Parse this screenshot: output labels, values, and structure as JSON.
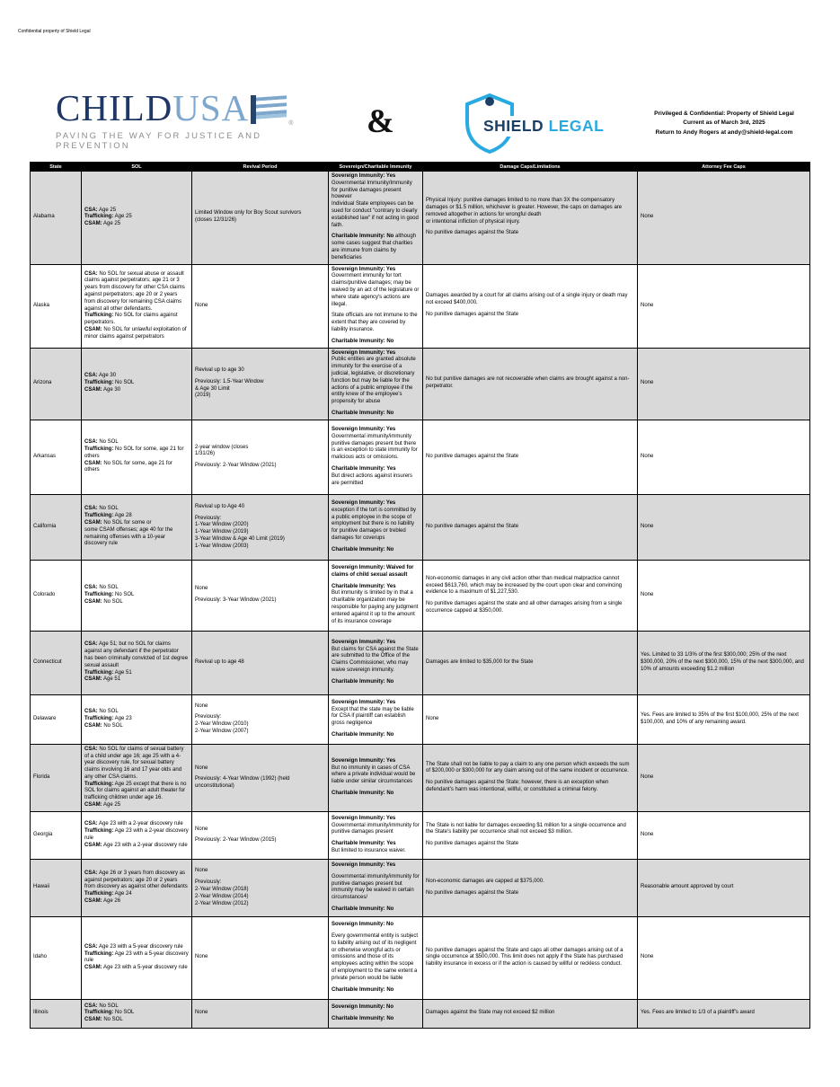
{
  "page": {
    "confidential_note": "Confidential property of Shield Legal"
  },
  "header": {
    "childusa": {
      "child": "CHILD",
      "usa": "USA",
      "registered": "®",
      "tagline": "PAVING THE WAY FOR JUSTICE AND PREVENTION"
    },
    "ampersand": "&",
    "shieldlegal": {
      "word1": "SHIELD",
      "word2": "LEGAL"
    },
    "notice_lines": [
      "Privileged & Confidential: Property of Shield Legal",
      "Current as of March 3rd, 2025",
      "Return to Andy Rogers at andy@shield-legal.com"
    ]
  },
  "colors": {
    "childusa_navy": "#1f3766",
    "childusa_blue": "#7da7cc",
    "shield_navy": "#1b3f66",
    "shield_blue": "#29abe2",
    "row_gray": "#d9d9d9",
    "header_bg": "#000000"
  },
  "table": {
    "columns": [
      "State",
      "SOL",
      "Revival Period",
      "Sovereign/Charitable Immunity",
      "Damage Caps/Limitations",
      "Attorney Fee Caps"
    ],
    "rows": [
      {
        "state": "Alabama",
        "sol": [
          {
            "b": "CSA:",
            "t": " Age 25"
          },
          {
            "b": "Trafficking:",
            "t": " Age 25"
          },
          {
            "b": "CSAM:",
            "t": " Age 25"
          }
        ],
        "revival": [
          {
            "t": "Limited Window only for Boy Scout survivors"
          },
          {
            "t": "(closes 12/31/26)"
          }
        ],
        "immunity": [
          {
            "b": "Sovereign Immunity: Yes",
            "t": " Governmental Immunity/Immunity for punitive damages present however"
          },
          {
            "t": "Individual State employees can be sued for conduct \"contrary to clearly established law\" if not acting in good faith."
          },
          {
            "gap": true
          },
          {
            "b": "Charitable Immunity: No",
            "t": " although some cases suggest that charities are immune from claims by beneficiaries"
          }
        ],
        "damages": [
          {
            "t": "Physical Injury: punitive damages limited to no more than 3X the compensatory damages or $1.5 million, whichever is greater. However, the caps on damages are removed altogether in actions for wrongful death"
          },
          {
            "t": "or intentional infliction of physical injury."
          },
          {
            "gap": true
          },
          {
            "t": "No punitive damages against the State"
          }
        ],
        "fees": [
          {
            "t": "None"
          }
        ]
      },
      {
        "state": "Alaska",
        "sol": [
          {
            "b": "CSA:",
            "t": " No SOL for sexual abuse or assault claims against perpetrators; age 21 or 3 years from discovery for other CSA claims against perpetrators; age 20 or 2 years from discovery for remaining CSA claims against all other defendants."
          },
          {
            "b": "Trafficking:",
            "t": " No SOL for claims against perpetrators."
          },
          {
            "b": "CSAM:",
            "t": " No SOL for unlawful exploitation of minor claims against perpetrators"
          }
        ],
        "revival": [
          {
            "t": "None"
          }
        ],
        "immunity": [
          {
            "b": "Sovereign Immunity: Yes"
          },
          {
            "t": "Government immunity for tort claims/punitive damages; may be waived by an act of the legislature or where state agency's actions are illegal."
          },
          {
            "gap": true
          },
          {
            "t": "State officials are not immune to the extent that they are covered by liability insurance."
          },
          {
            "gap": true
          },
          {
            "b": "Charitable Immunity: No"
          }
        ],
        "damages": [
          {
            "t": "Damages awarded by a court for all claims arising out of a single injury or death may not exceed $400,000."
          },
          {
            "gap": true
          },
          {
            "t": "No punitive damages against the State"
          }
        ],
        "fees": [
          {
            "t": "None"
          }
        ]
      },
      {
        "state": "Arizona",
        "sol": [
          {
            "b": "CSA:",
            "t": " Age 30"
          },
          {
            "b": "Trafficking:",
            "t": " No SOL"
          },
          {
            "b": "CSAM:",
            "t": " Age 30"
          }
        ],
        "revival": [
          {
            "t": "Revival up to age 30"
          },
          {
            "gap": true
          },
          {
            "t": "Previously: 1.5-Year Window"
          },
          {
            "t": "& Age 30 Limit"
          },
          {
            "t": "(2019)"
          }
        ],
        "immunity": [
          {
            "b": "Sovereign Immunity: Yes"
          },
          {
            "t": "Public entities are granted absolute immunity for the exercise of a judicial, legislative, or discretionary function but may be liable for the actions of a public employee if the entity knew of the employee's propensity for abuse"
          },
          {
            "gap": true
          },
          {
            "b": "Charitable Immunity: No"
          }
        ],
        "damages": [
          {
            "t": "No but punitive damages are not recoverable when claims are brought against a non-perpetrator."
          }
        ],
        "fees": [
          {
            "t": "None"
          }
        ]
      },
      {
        "state": "Arkansas",
        "sol": [
          {
            "b": "CSA:",
            "t": " No SOL"
          },
          {
            "b": "Trafficking:",
            "t": " No SOL for some, age 21 for others"
          },
          {
            "b": "CSAM:",
            "t": " No SOL for some, age 21 for others"
          }
        ],
        "revival": [
          {
            "t": "2-year window (closes"
          },
          {
            "t": "1/31/26)"
          },
          {
            "gap": true
          },
          {
            "t": "Previously: 2-Year Window (2021)"
          }
        ],
        "immunity": [
          {
            "b": "Sovereign Immunity: Yes"
          },
          {
            "t": "Governmental immunity/immunity punitive damages present but there is an exception to state immunity for malicious acts or omissions."
          },
          {
            "gap": true
          },
          {
            "b": "Charitable Immunity: Yes"
          },
          {
            "t": "But direct actions against insurers are permitted"
          }
        ],
        "damages": [
          {
            "t": "No punitive damages against the State"
          }
        ],
        "fees": [
          {
            "t": "None"
          }
        ]
      },
      {
        "state": "California",
        "sol": [
          {
            "b": "CSA:",
            "t": " No SOL"
          },
          {
            "b": "Trafficking:",
            "t": " Age 28"
          },
          {
            "b": "CSAM:",
            "t": " No SOL for some or"
          },
          {
            "t": "some CSAM offenses; age 40 for the remaining offenses with a 10-year discovery rule"
          }
        ],
        "revival": [
          {
            "t": "Revival up to Age 40"
          },
          {
            "gap": true
          },
          {
            "t": "Previously:"
          },
          {
            "t": "1-Year Window (2020)"
          },
          {
            "t": "1-Year Window (2019)"
          },
          {
            "t": "3-Year Window & Age 40 Limit (2019)"
          },
          {
            "t": "1-Year Window (2003)"
          }
        ],
        "immunity": [
          {
            "b": "Sovereign Immunity: Yes"
          },
          {
            "t": "exception if the tort is committed by a public employee in the scope of employment but there is no liability for punitive damages or trebled damages for coverups"
          },
          {
            "gap": true
          },
          {
            "b": "Charitable Immunity: No"
          }
        ],
        "damages": [
          {
            "t": "No punitive damages against the State"
          }
        ],
        "fees": [
          {
            "t": "None"
          }
        ]
      },
      {
        "state": "Colorado",
        "sol": [
          {
            "b": "CSA:",
            "t": " No SOL"
          },
          {
            "b": "Trafficking:",
            "t": " No SOL"
          },
          {
            "b": "CSAM:",
            "t": " No SOL"
          }
        ],
        "revival": [
          {
            "t": "None"
          },
          {
            "gap": true
          },
          {
            "t": "Previously: 3-Year Window (2021)"
          }
        ],
        "immunity": [
          {
            "b": "Sovereign Immunity: Waived for claims of child sexual assault"
          },
          {
            "gap": true
          },
          {
            "b": "Charitable Immunity: Yes"
          },
          {
            "t": "But immunity is limited by in that a charitable organization may be responsible for paying any judgment entered against it up to the amount of its insurance coverage"
          }
        ],
        "damages": [
          {
            "t": "Non-economic damages in any civil action other than medical malpractice cannot exceed $613,760, which may be increased by the court upon clear and convincing evidence to a maximum of $1,227,530."
          },
          {
            "gap": true
          },
          {
            "t": "No punitive damages against the state and all other damages arising from a single occurrence capped at $350,000."
          }
        ],
        "fees": [
          {
            "t": "None"
          }
        ]
      },
      {
        "state": "Connecticut",
        "sol": [
          {
            "b": "CSA:",
            "t": " Age 51; but no SOL for claims against any defendant if the perpetrator has been criminally convicted of 1st degree sexual assault"
          },
          {
            "b": "Trafficking:",
            "t": " Age 51"
          },
          {
            "b": "CSAM:",
            "t": " Age 51"
          }
        ],
        "revival": [
          {
            "t": "Revival up to age 48"
          }
        ],
        "immunity": [
          {
            "b": "Sovereign Immunity: Yes"
          },
          {
            "t": "But claims for CSA against the State are submitted to the Office of the Claims Commissioner, who may waive sovereign immunity."
          },
          {
            "gap": true
          },
          {
            "b": "Charitable Immunity: No"
          }
        ],
        "damages": [
          {
            "t": "Damages are limited to $35,000 for the State"
          }
        ],
        "fees": [
          {
            "t": "Yes. Limited to 33 1/3% of the first $300,000; 25% of the next $300,000, 20% of the next $300,000, 15% of the next $300,000, and 10% of amounts exceeding $1.2 million"
          }
        ]
      },
      {
        "state": "Delaware",
        "sol": [
          {
            "b": "CSA:",
            "t": " No SOL"
          },
          {
            "b": "Trafficking:",
            "t": " Age 23"
          },
          {
            "b": "CSAM:",
            "t": " No SOL"
          }
        ],
        "revival": [
          {
            "t": "None"
          },
          {
            "gap": true
          },
          {
            "t": "Previously:"
          },
          {
            "t": "2-Year Window (2010)"
          },
          {
            "t": "2-Year Window (2007)"
          }
        ],
        "immunity": [
          {
            "b": "Sovereign Immunity: Yes"
          },
          {
            "t": "Except that the state may be liable for CSA if plaintiff can establish gross negligence"
          },
          {
            "gap": true
          },
          {
            "b": "Charitable Immunity: No"
          }
        ],
        "damages": [
          {
            "t": "None"
          }
        ],
        "fees": [
          {
            "t": "Yes. Fees are limited to 35% of the first $100,000, 25% of the next $100,000, and 10% of any remaining award."
          }
        ]
      },
      {
        "state": "Florida",
        "sol": [
          {
            "b": "CSA:",
            "t": " No SOL for claims of sexual battery of a child under age 16; age 25 with a 4-year discovery rule, for sexual battery claims involving 16 and 17 year olds and any other CSA claims."
          },
          {
            "b": "Trafficking:",
            "t": " Age 25 except that there is no SOL for claims against an adult theater for trafficking children under age 16."
          },
          {
            "b": "CSAM:",
            "t": " Age 25"
          }
        ],
        "revival": [
          {
            "t": "None"
          },
          {
            "gap": true
          },
          {
            "t": "Previously: 4-Year Window (1992) (held unconstitutional)"
          }
        ],
        "immunity": [
          {
            "b": "Sovereign Immunity: Yes"
          },
          {
            "t": "But no immunity in cases of CSA where a private individual would be liable under similar circumstances"
          },
          {
            "gap": true
          },
          {
            "b": "Charitable Immunity: No"
          }
        ],
        "damages": [
          {
            "t": "The State shall not be liable to pay a claim to any one person which exceeds the sum of $200,000 or $300,000 for any claim arising out of the same incident or occurrence."
          },
          {
            "gap": true
          },
          {
            "t": "No punitive damages against the State; however, there is an exception when defendant's harm was intentional, willful, or constituted a criminal felony."
          }
        ],
        "fees": [
          {
            "t": "None"
          }
        ]
      },
      {
        "state": "Georgia",
        "sol": [
          {
            "b": "CSA:",
            "t": " Age 23 with a 2-year discovery rule"
          },
          {
            "b": "Trafficking:",
            "t": " Age 23 with a 2-year discovery rule"
          },
          {
            "b": "CSAM:",
            "t": " Age 23 with a 2-year discovery rule"
          }
        ],
        "revival": [
          {
            "t": "None"
          },
          {
            "gap": true
          },
          {
            "t": "Previously: 2-Year Window (2015)"
          }
        ],
        "immunity": [
          {
            "b": "Sovereign Immunity: Yes",
            "t": " Governmental immunity/immunity for punitive damages present"
          },
          {
            "gap": true
          },
          {
            "b": "Charitable Immunity: Yes"
          },
          {
            "t": "But limited to insurance waiver."
          }
        ],
        "damages": [
          {
            "t": "The State is not liable for damages exceeding $1 million for a single occurrence and the State's liability per occurrence shall not exceed $3 million."
          },
          {
            "gap": true
          },
          {
            "t": "No punitive damages against the State"
          }
        ],
        "fees": [
          {
            "t": "None"
          }
        ]
      },
      {
        "state": "Hawaii",
        "sol": [
          {
            "b": "CSA:",
            "t": " Age 26 or 3 years from discovery as against perpetrators; age 20 or 2 years from discovery as against other defendants"
          },
          {
            "b": "Trafficking:",
            "t": " Age 24"
          },
          {
            "b": "CSAM:",
            "t": " Age 26"
          }
        ],
        "revival": [
          {
            "t": "None"
          },
          {
            "gap": true
          },
          {
            "t": "Previously:"
          },
          {
            "t": "2-Year Window (2018)"
          },
          {
            "t": "2-Year Window (2014)"
          },
          {
            "t": "2-Year Window (2012)"
          }
        ],
        "immunity": [
          {
            "b": "Sovereign Immunity: Yes"
          },
          {
            "gap": true
          },
          {
            "t": "Governmental immunity/immunity for punitive damages present but immunity may be waived in certain circumstances/"
          },
          {
            "gap": true
          },
          {
            "b": "Charitable Immunity: No"
          }
        ],
        "damages": [
          {
            "t": "Non-economic damages are capped at $375,000."
          },
          {
            "gap": true
          },
          {
            "t": "No punitive damages against the State"
          }
        ],
        "fees": [
          {
            "t": "Reasonable amount approved by court"
          }
        ]
      },
      {
        "state": "Idaho",
        "sol": [
          {
            "b": "CSA:",
            "t": " Age 23 with a 5-year discovery rule"
          },
          {
            "b": "Trafficking:",
            "t": " Age 23 with a 5-year discovery rule"
          },
          {
            "b": "CSAM:",
            "t": " Age 23 with a 5-year discovery rule"
          }
        ],
        "revival": [
          {
            "t": "None"
          }
        ],
        "immunity": [
          {
            "b": "Sovereign Immunity: No"
          },
          {
            "gap": true
          },
          {
            "t": "Every governmental entity is subject to liability arising out of its negligent or otherwise wrongful acts or omissions and those of its employees acting within the scope of employment to the same extent a private person would be liable"
          },
          {
            "gap": true
          },
          {
            "b": "Charitable Immunity: No"
          }
        ],
        "damages": [
          {
            "t": "No punitive damages against the State and caps all other damages arising out of a single occurrence at $500,000. This limit does not apply if the State has purchased liability insurance in excess or if the action is caused by willful or reckless conduct."
          }
        ],
        "fees": [
          {
            "t": "None"
          }
        ]
      },
      {
        "state": "Illinois",
        "sol": [
          {
            "b": "CSA:",
            "t": " No SOL"
          },
          {
            "b": "Trafficking:",
            "t": " No SOL"
          },
          {
            "b": "CSAM:",
            "t": " No SOL"
          }
        ],
        "revival": [
          {
            "t": "None"
          }
        ],
        "immunity": [
          {
            "b": "Sovereign Immunity: No"
          },
          {
            "gap": true
          },
          {
            "b": "Charitable Immunity: No"
          }
        ],
        "damages": [
          {
            "t": "Damages against the State may not exceed $2 million"
          }
        ],
        "fees": [
          {
            "t": "Yes. Fees are limited to 1/3 of a plaintiff's award"
          }
        ]
      }
    ]
  }
}
